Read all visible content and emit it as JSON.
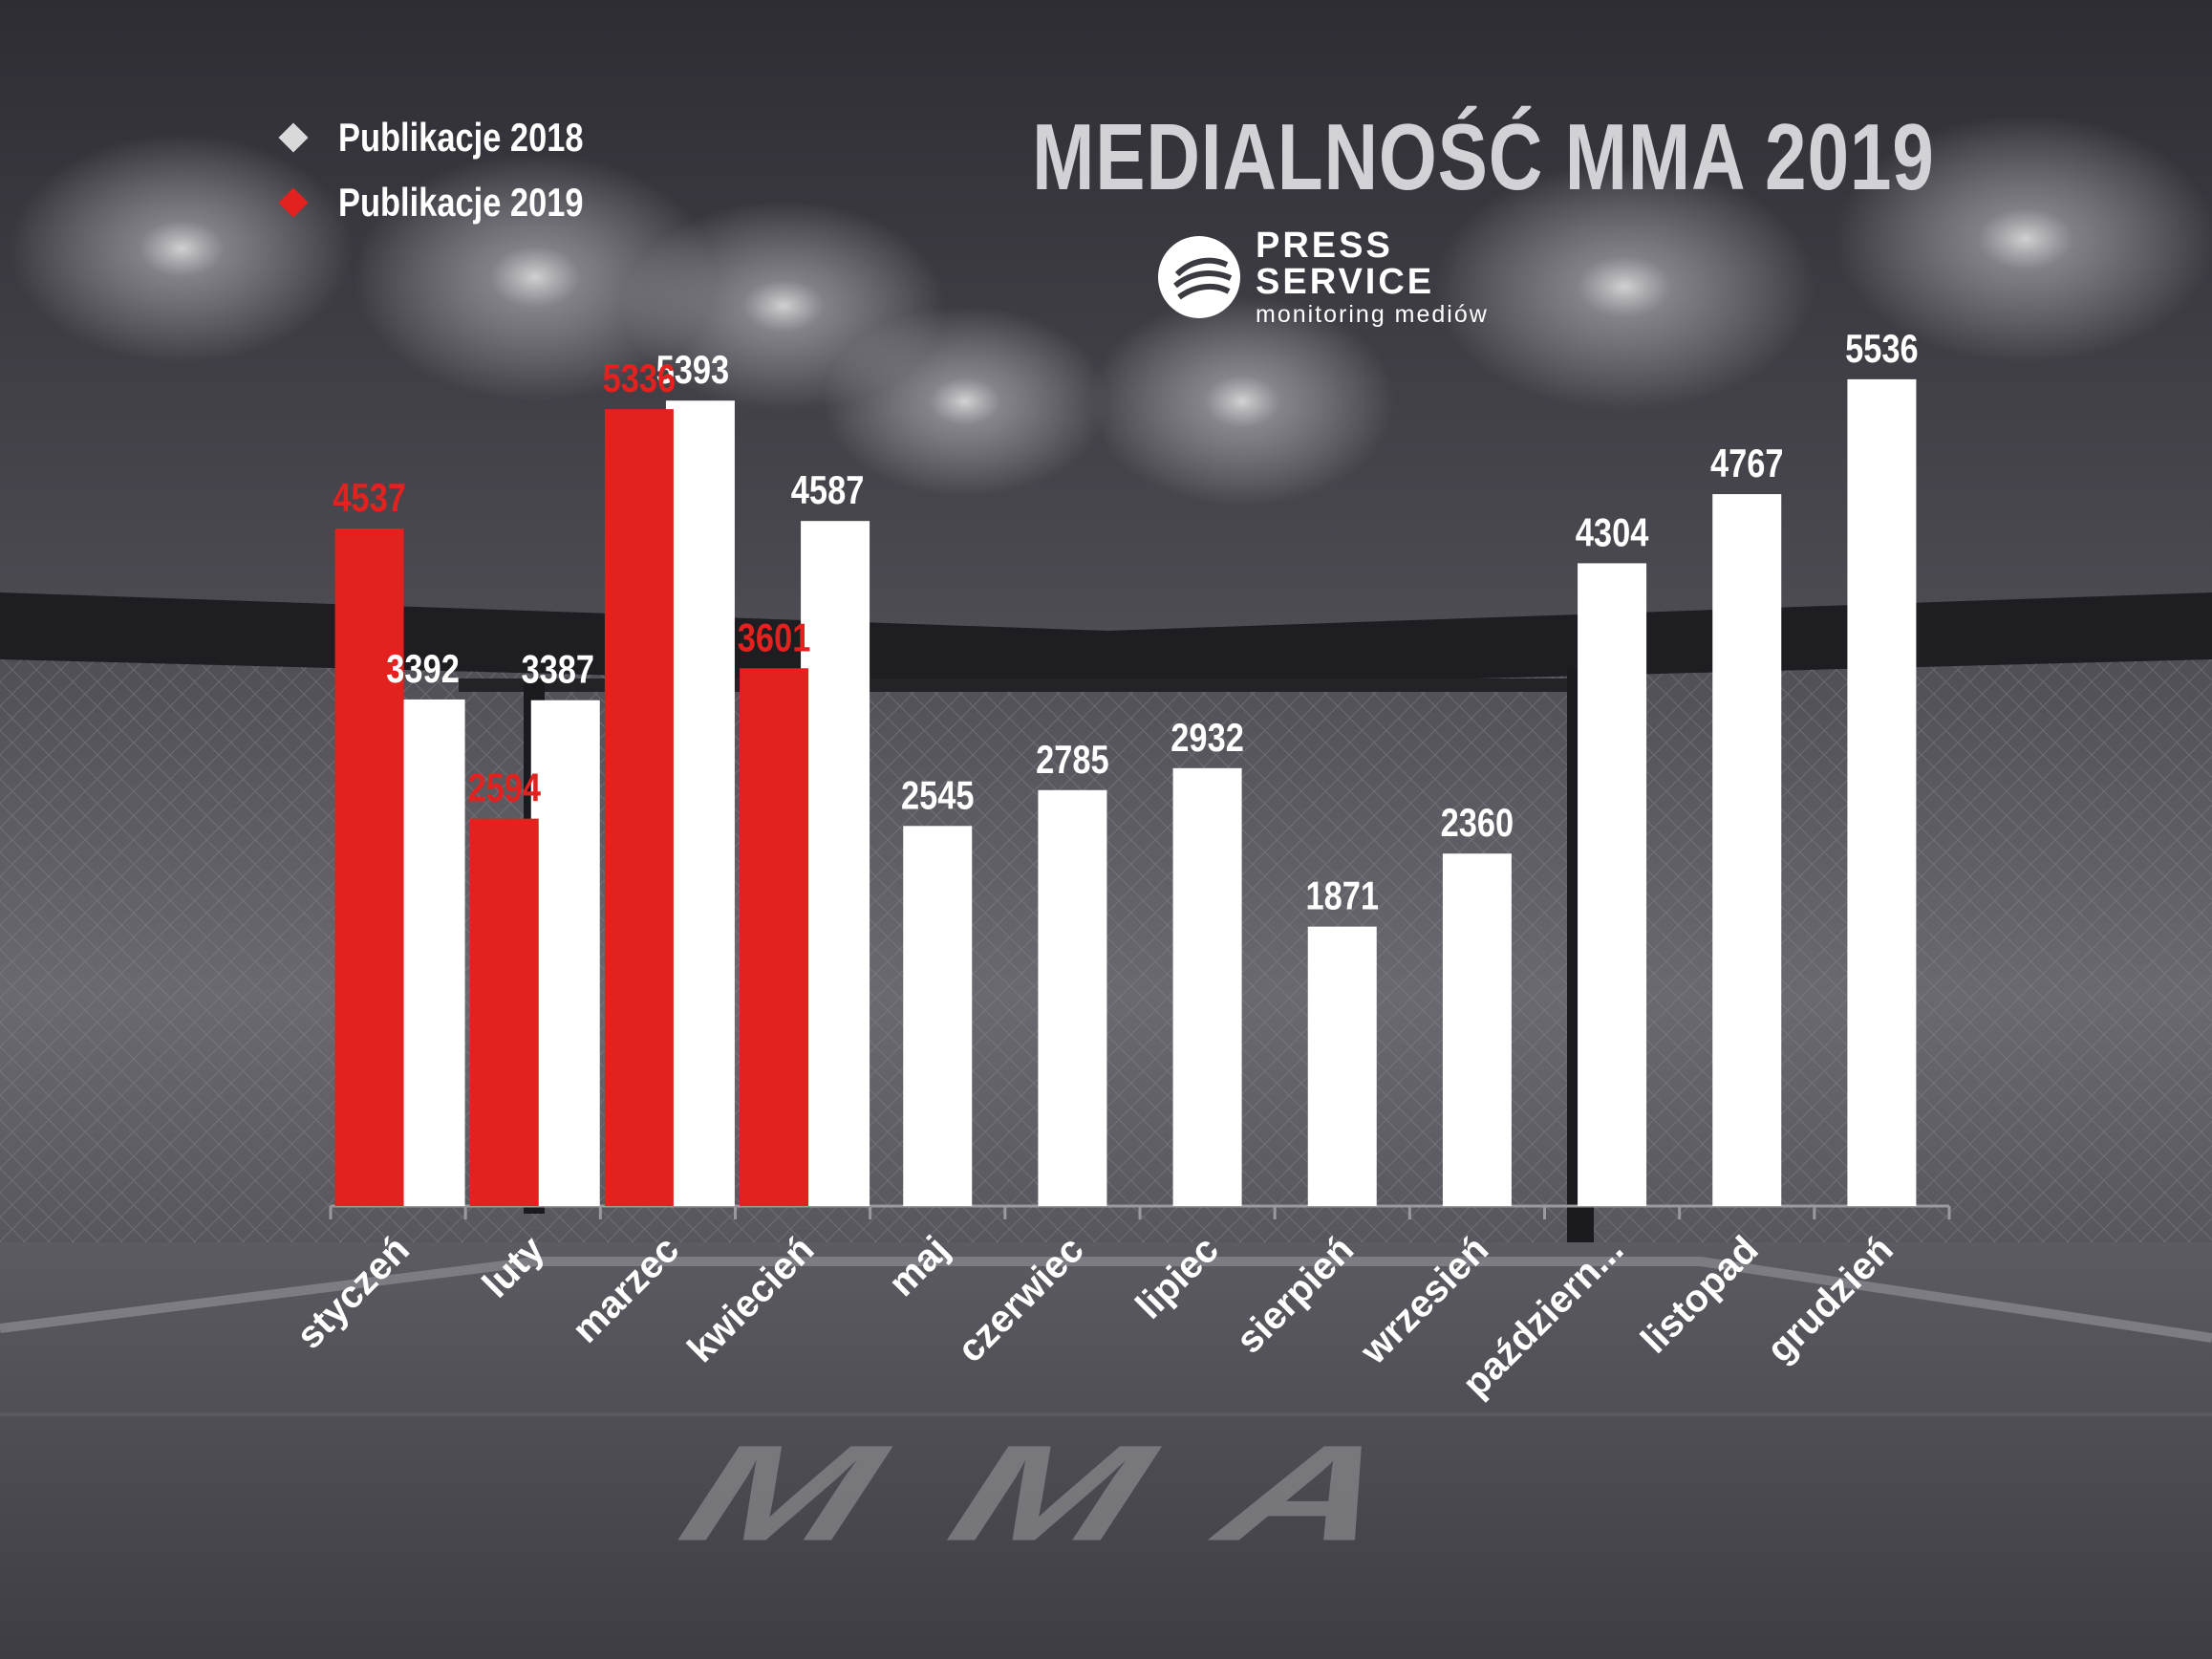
{
  "title": "MEDIALNOŚĆ MMA 2019",
  "logo": {
    "line1": "PRESS",
    "line2": "SERVICE",
    "tagline": "monitoring mediów"
  },
  "floor_text": "MMA",
  "legend": [
    {
      "label": "Publikacje 2018",
      "color": "#d9d9d9"
    },
    {
      "label": "Publikacje 2019",
      "color": "#e3211e"
    }
  ],
  "chart_data": {
    "type": "bar",
    "title": "MEDIALNOŚĆ MMA 2019",
    "categories": [
      "styczeń",
      "luty",
      "marzec",
      "kwiecień",
      "maj",
      "czerwiec",
      "lipiec",
      "sierpień",
      "wrzesień",
      "październik",
      "listopad",
      "grudzień"
    ],
    "category_tick_labels": [
      "styczeń",
      "luty",
      "marzec",
      "kwiecień",
      "maj",
      "czerwiec",
      "lipiec",
      "sierpień",
      "wrzesień",
      "październ...",
      "listopad",
      "grudzień"
    ],
    "series": [
      {
        "name": "Publikacje 2018",
        "color": "#ffffff",
        "label_color": "#ffffff",
        "values": [
          3392,
          3387,
          5393,
          4587,
          2545,
          2785,
          2932,
          1871,
          2360,
          4304,
          4767,
          5536
        ]
      },
      {
        "name": "Publikacje 2019",
        "color": "#e3211e",
        "label_color": "#e3211e",
        "values": [
          4537,
          2594,
          5336,
          3601,
          null,
          null,
          null,
          null,
          null,
          null,
          null,
          null
        ]
      }
    ],
    "ylim": [
      0,
      5900
    ],
    "grid": false,
    "legend_position": "top-left"
  }
}
